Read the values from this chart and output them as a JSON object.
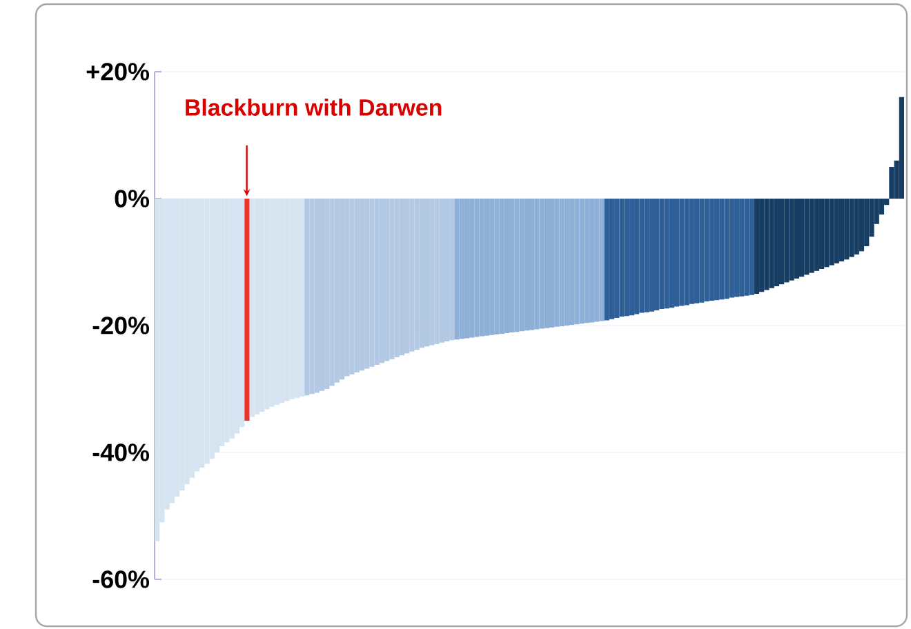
{
  "chart_data": {
    "type": "bar",
    "ylim": [
      -60,
      20
    ],
    "yticks": [
      {
        "value": 20,
        "label": "+20%"
      },
      {
        "value": 0,
        "label": "0%"
      },
      {
        "value": -20,
        "label": "-20%"
      },
      {
        "value": -40,
        "label": "-40%"
      },
      {
        "value": -60,
        "label": "-60%"
      }
    ],
    "grid": "y",
    "tick_labels": "y",
    "annotations": [
      "Blackburn with Darwen"
    ],
    "categories": [
      null,
      null,
      null,
      null,
      null,
      null,
      null,
      null,
      null,
      null,
      null,
      null,
      null,
      null,
      null,
      null,
      null,
      null,
      null,
      null,
      null,
      null,
      null,
      null,
      null,
      null,
      null,
      null,
      null,
      null,
      null,
      null,
      null,
      null,
      null,
      null,
      null,
      null,
      null,
      null,
      null,
      null,
      null,
      null,
      null,
      null,
      null,
      null,
      null,
      null,
      null,
      null,
      null,
      null,
      null,
      null,
      null,
      null,
      null,
      null,
      null,
      null,
      null,
      null,
      null,
      null,
      null,
      null,
      null,
      null,
      null,
      null,
      null,
      null,
      null,
      null,
      null,
      null,
      null,
      null,
      null,
      null,
      null,
      null,
      null,
      null,
      null,
      null,
      null,
      null,
      null,
      null,
      null,
      null,
      null,
      null,
      null,
      null,
      null,
      null,
      null,
      null,
      null,
      null,
      null,
      null,
      null,
      null,
      null,
      null,
      null,
      null,
      null,
      null,
      null,
      null,
      null,
      null,
      null,
      null,
      null,
      null,
      null,
      null,
      null,
      null,
      null,
      null,
      null,
      null,
      null,
      null,
      null,
      null,
      null,
      null,
      null,
      null,
      null,
      null,
      null,
      null,
      null,
      null,
      null,
      null,
      null,
      null,
      null,
      null
    ],
    "values": [
      -54,
      -51,
      -49,
      -48,
      -47,
      -46,
      -45,
      -44,
      -43,
      -42.4,
      -41.8,
      -41,
      -40,
      -39,
      -38.4,
      -37.8,
      -37,
      -36,
      -35,
      -34.4,
      -34,
      -33.6,
      -33.2,
      -32.8,
      -32.5,
      -32.2,
      -31.9,
      -31.6,
      -31.4,
      -31.2,
      -31,
      -30.8,
      -30.6,
      -30.3,
      -30,
      -29.5,
      -29,
      -28.5,
      -28,
      -27.7,
      -27.4,
      -27.1,
      -26.8,
      -26.5,
      -26.2,
      -25.9,
      -25.6,
      -25.3,
      -25,
      -24.7,
      -24.4,
      -24.1,
      -23.8,
      -23.5,
      -23.3,
      -23.1,
      -22.9,
      -22.7,
      -22.5,
      -22.3,
      -22.2,
      -22.1,
      -22,
      -21.9,
      -21.8,
      -21.7,
      -21.6,
      -21.5,
      -21.4,
      -21.3,
      -21.2,
      -21.1,
      -21,
      -20.9,
      -20.8,
      -20.7,
      -20.6,
      -20.5,
      -20.4,
      -20.3,
      -20.2,
      -20.1,
      -20,
      -19.9,
      -19.8,
      -19.7,
      -19.6,
      -19.5,
      -19.4,
      -19.3,
      -19.2,
      -19,
      -18.8,
      -18.6,
      -18.5,
      -18.4,
      -18.2,
      -18,
      -17.9,
      -17.8,
      -17.6,
      -17.4,
      -17.3,
      -17.2,
      -17,
      -16.9,
      -16.8,
      -16.6,
      -16.5,
      -16.4,
      -16.2,
      -16.1,
      -16,
      -15.9,
      -15.8,
      -15.6,
      -15.5,
      -15.4,
      -15.3,
      -15.2,
      -15,
      -14.7,
      -14.4,
      -14.1,
      -13.8,
      -13.5,
      -13.2,
      -12.9,
      -12.6,
      -12.3,
      -12,
      -11.7,
      -11.4,
      -11.1,
      -10.8,
      -10.5,
      -10.2,
      -9.9,
      -9.6,
      -9.2,
      -8.8,
      -8.3,
      -7.5,
      -6,
      -4,
      -2.5,
      -1,
      5,
      6,
      16
    ],
    "colors": [
      "#d6e3f1",
      "#d6e3f1",
      "#d6e3f1",
      "#d6e3f1",
      "#d6e3f1",
      "#d6e3f1",
      "#d6e3f1",
      "#d6e3f1",
      "#d6e3f1",
      "#d6e3f1",
      "#d6e3f1",
      "#d6e3f1",
      "#d6e3f1",
      "#d6e3f1",
      "#d6e3f1",
      "#d6e3f1",
      "#d6e3f1",
      "#d6e3f1",
      "#e8342a",
      "#d6e3f1",
      "#d6e3f1",
      "#d6e3f1",
      "#d6e3f1",
      "#d6e3f1",
      "#d6e3f1",
      "#d6e3f1",
      "#d6e3f1",
      "#d6e3f1",
      "#d6e3f1",
      "#d6e3f1",
      "#b3c9e3",
      "#b3c9e3",
      "#b3c9e3",
      "#b3c9e3",
      "#b3c9e3",
      "#b3c9e3",
      "#b3c9e3",
      "#b3c9e3",
      "#b3c9e3",
      "#b3c9e3",
      "#b3c9e3",
      "#b3c9e3",
      "#b3c9e3",
      "#b3c9e3",
      "#b3c9e3",
      "#b3c9e3",
      "#b3c9e3",
      "#b3c9e3",
      "#b3c9e3",
      "#b3c9e3",
      "#b3c9e3",
      "#b3c9e3",
      "#b3c9e3",
      "#b3c9e3",
      "#b3c9e3",
      "#b3c9e3",
      "#b3c9e3",
      "#b3c9e3",
      "#b3c9e3",
      "#b3c9e3",
      "#8eafd6",
      "#8eafd6",
      "#8eafd6",
      "#8eafd6",
      "#8eafd6",
      "#8eafd6",
      "#8eafd6",
      "#8eafd6",
      "#8eafd6",
      "#8eafd6",
      "#8eafd6",
      "#8eafd6",
      "#8eafd6",
      "#8eafd6",
      "#8eafd6",
      "#8eafd6",
      "#8eafd6",
      "#8eafd6",
      "#8eafd6",
      "#8eafd6",
      "#8eafd6",
      "#8eafd6",
      "#8eafd6",
      "#8eafd6",
      "#8eafd6",
      "#8eafd6",
      "#8eafd6",
      "#8eafd6",
      "#8eafd6",
      "#8eafd6",
      "#2f5f97",
      "#2f5f97",
      "#2f5f97",
      "#2f5f97",
      "#2f5f97",
      "#2f5f97",
      "#2f5f97",
      "#2f5f97",
      "#2f5f97",
      "#2f5f97",
      "#2f5f97",
      "#2f5f97",
      "#2f5f97",
      "#2f5f97",
      "#2f5f97",
      "#2f5f97",
      "#2f5f97",
      "#2f5f97",
      "#2f5f97",
      "#2f5f97",
      "#2f5f97",
      "#2f5f97",
      "#2f5f97",
      "#2f5f97",
      "#2f5f97",
      "#2f5f97",
      "#2f5f97",
      "#2f5f97",
      "#2f5f97",
      "#2f5f97",
      "#173d63",
      "#173d63",
      "#173d63",
      "#173d63",
      "#173d63",
      "#173d63",
      "#173d63",
      "#173d63",
      "#173d63",
      "#173d63",
      "#173d63",
      "#173d63",
      "#173d63",
      "#173d63",
      "#173d63",
      "#173d63",
      "#173d63",
      "#173d63",
      "#173d63",
      "#173d63",
      "#173d63",
      "#173d63",
      "#173d63",
      "#173d63",
      "#173d63",
      "#173d63",
      "#173d63",
      "#173d63",
      "#173d63",
      "#173d63"
    ]
  }
}
